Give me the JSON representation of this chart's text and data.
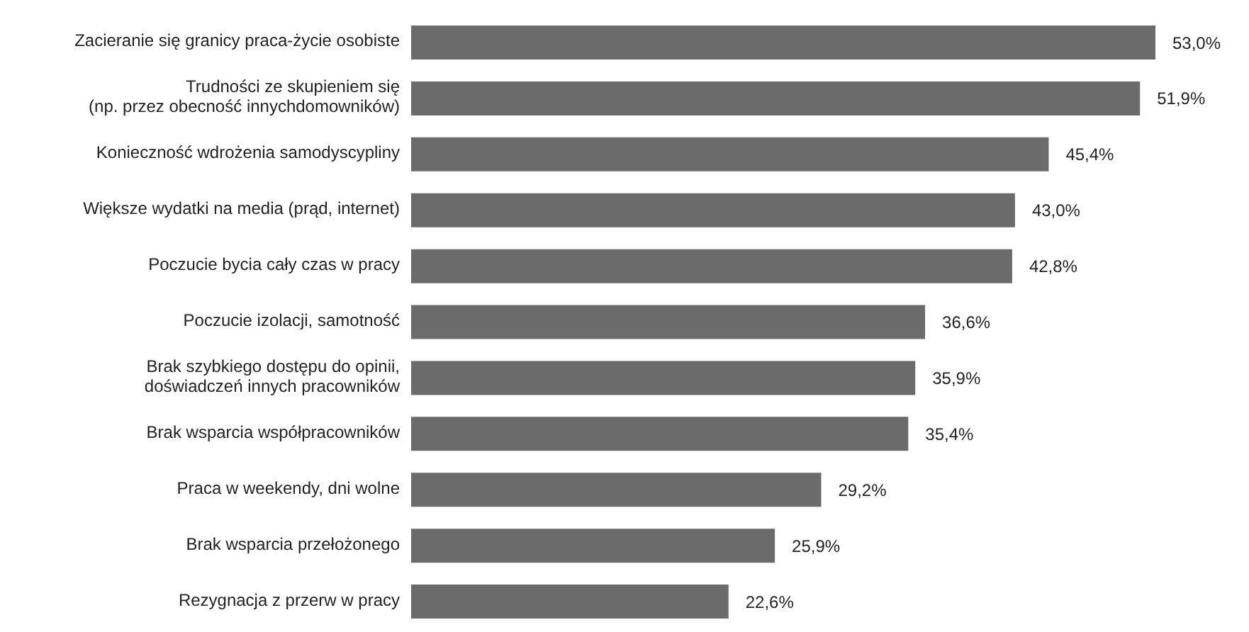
{
  "chart_data": {
    "type": "bar",
    "orientation": "horizontal",
    "categories": [
      "Zacieranie się granicy praca-życie osobiste",
      "Trudności ze skupieniem się\n(np. przez obecność innychdomowników)",
      "Konieczność wdrożenia samodyscypliny",
      "Większe wydatki na media (prąd, internet)",
      "Poczucie bycia cały czas w pracy",
      "Poczucie izolacji, samotność",
      "Brak szybkiego dostępu do opinii,\ndoświadczeń innych pracowników",
      "Brak wsparcia współpracowników",
      "Praca w weekendy, dni wolne",
      "Brak wsparcia przełożonego",
      "Rezygnacja z przerw w pracy"
    ],
    "values": [
      53.0,
      51.9,
      45.4,
      43.0,
      42.8,
      36.6,
      35.9,
      35.4,
      29.2,
      25.9,
      22.6
    ],
    "value_labels": [
      "53,0%",
      "51,9%",
      "45,4%",
      "43,0%",
      "42,8%",
      "36,6%",
      "35,9%",
      "35,4%",
      "29,2%",
      "25,9%",
      "22,6%"
    ],
    "color": "#6b6b6b"
  }
}
